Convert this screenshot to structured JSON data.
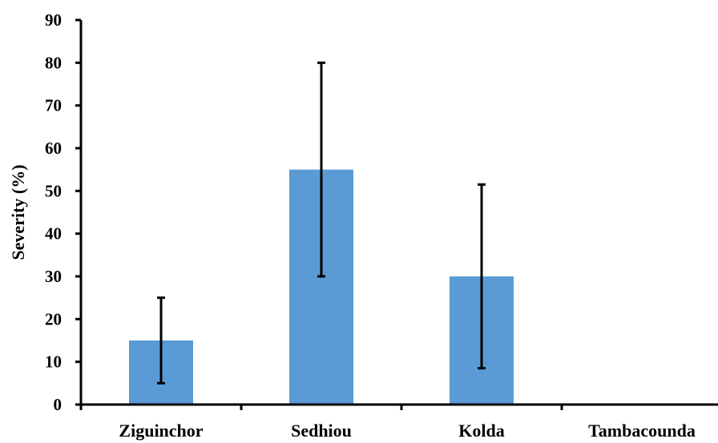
{
  "chart_data": {
    "type": "bar",
    "categories": [
      "Ziguinchor",
      "Sedhiou",
      "Kolda",
      "Tambacounda"
    ],
    "values": [
      15,
      55,
      30,
      0
    ],
    "error_low": [
      5,
      30,
      8.5,
      0
    ],
    "error_high": [
      25,
      80,
      51.5,
      0
    ],
    "title": "",
    "xlabel": "",
    "ylabel": "Severity (%)",
    "ylim": [
      0,
      90
    ],
    "yticks": [
      0,
      10,
      20,
      30,
      40,
      50,
      60,
      70,
      80,
      90
    ],
    "grid": false,
    "legend": "none",
    "bar_color": "#5b9bd5",
    "axis_color": "#000000"
  }
}
